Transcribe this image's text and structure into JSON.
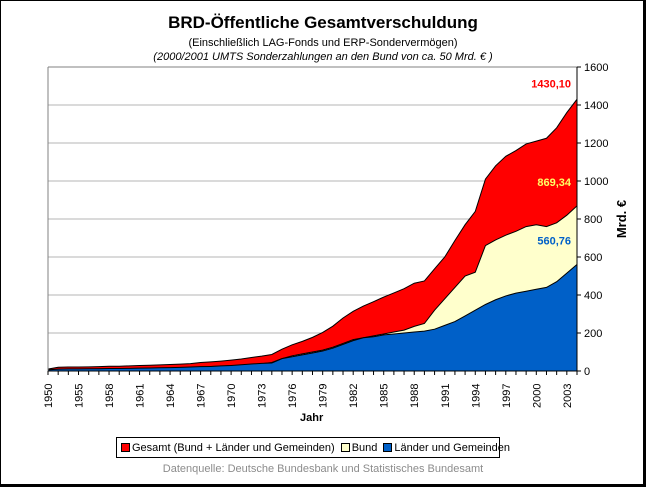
{
  "chart_data": {
    "type": "area",
    "title": "BRD-Öffentliche Gesamtverschuldung",
    "subtitle": "(Einschließlich LAG-Fonds und ERP-Sondervermögen)",
    "subtitle2": "(2000/2001 UMTS Sonderzahlungen an den Bund von ca. 50 Mrd. € )",
    "xlabel": "Jahr",
    "ylabel": "Mrd. €",
    "ylim": [
      0,
      1600
    ],
    "yticks": [
      "0",
      "200",
      "400",
      "600",
      "800",
      "1000",
      "1200",
      "1400",
      "1600"
    ],
    "ytick_values": [
      0,
      200,
      400,
      600,
      800,
      1000,
      1200,
      1400,
      1600
    ],
    "grid": true,
    "y_axis_side": "right",
    "legend_position": "bottom",
    "categories": [
      "1950",
      "1953",
      "1954",
      "1955",
      "1956",
      "1957",
      "1958",
      "1959",
      "1960",
      "1961",
      "1962",
      "1963",
      "1964",
      "1965",
      "1966",
      "1967",
      "1968",
      "1969",
      "1970",
      "1971",
      "1972",
      "1973",
      "1974",
      "1975",
      "1976",
      "1977",
      "1978",
      "1979",
      "1980",
      "1981",
      "1982",
      "1983",
      "1984",
      "1985",
      "1986",
      "1987",
      "1988",
      "1989",
      "1990",
      "1991",
      "1992",
      "1993",
      "1994",
      "1995",
      "1996",
      "1997",
      "1998",
      "1999",
      "2000",
      "2001",
      "2002",
      "2003",
      "2004"
    ],
    "xtick_labels": [
      "1950",
      "1955",
      "1958",
      "1961",
      "1964",
      "1967",
      "1970",
      "1973",
      "1976",
      "1979",
      "1982",
      "1985",
      "1988",
      "1991",
      "1994",
      "1997",
      "2000",
      "2003"
    ],
    "series": [
      {
        "name": "Gesamt (Bund + Länder und Gemeinden)",
        "color": "#ff0000",
        "values": [
          10,
          20,
          21,
          21,
          22,
          23,
          25,
          25,
          27,
          29,
          30,
          32,
          34,
          36,
          39,
          45,
          48,
          52,
          57,
          63,
          71,
          78,
          87,
          115,
          138,
          156,
          177,
          203,
          236,
          279,
          314,
          342,
          365,
          389,
          411,
          433,
          462,
          474,
          538,
          600,
          687,
          770,
          840,
          1010,
          1080,
          1130,
          1160,
          1195,
          1210,
          1225,
          1280,
          1360,
          1430.1
        ],
        "end_label": "1430,10"
      },
      {
        "name": "Bund",
        "color": "#ffffcc",
        "values": [
          4,
          9,
          10,
          10,
          10,
          11,
          12,
          12,
          13,
          14,
          14,
          15,
          16,
          17,
          18,
          22,
          24,
          25,
          28,
          30,
          34,
          38,
          45,
          65,
          80,
          90,
          100,
          110,
          125,
          145,
          165,
          175,
          185,
          195,
          205,
          215,
          235,
          250,
          320,
          380,
          440,
          500,
          520,
          660,
          690,
          715,
          735,
          760,
          770,
          760,
          780,
          820,
          869.34
        ],
        "end_label": "869,34"
      },
      {
        "name": "Länder und Gemeinden",
        "color": "#0060c8",
        "values": [
          6,
          10,
          11,
          11,
          12,
          12,
          13,
          13,
          14,
          15,
          16,
          17,
          18,
          19,
          21,
          23,
          24,
          27,
          29,
          33,
          37,
          40,
          42,
          65,
          75,
          85,
          95,
          105,
          120,
          140,
          160,
          175,
          180,
          190,
          195,
          200,
          205,
          210,
          220,
          240,
          260,
          290,
          320,
          350,
          375,
          395,
          410,
          420,
          430,
          440,
          470,
          515,
          560.76
        ],
        "end_label": "560,76"
      }
    ]
  },
  "legend": {
    "items": [
      {
        "label": "Gesamt (Bund + Länder und Gemeinden)",
        "color": "#ff0000"
      },
      {
        "label": "Bund",
        "color": "#ffffcc"
      },
      {
        "label": "Länder und Gemeinden",
        "color": "#0060c8"
      }
    ]
  },
  "source": "Datenquelle: Deutsche Bundesbank und Statistisches Bundesamt",
  "label_colors": {
    "gesamt": "#ff0000",
    "bund": "#ffff66",
    "laender": "#0060c8"
  }
}
